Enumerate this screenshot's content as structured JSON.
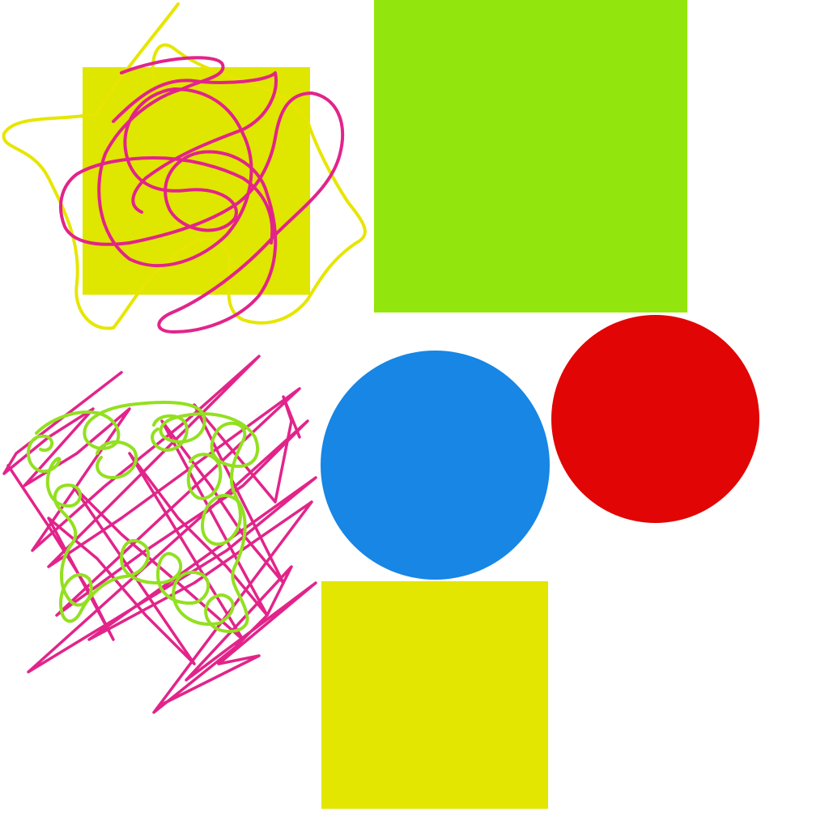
{
  "canvas": {
    "background": "#ffffff"
  },
  "shapes": [
    {
      "kind": "square",
      "name": "yellow-square-top",
      "color": "#dfe600"
    },
    {
      "kind": "square",
      "name": "green-square",
      "color": "#93e60d"
    },
    {
      "kind": "square",
      "name": "yellow-square-bottom",
      "color": "#e2e600"
    },
    {
      "kind": "circle",
      "name": "blue-circle",
      "color": "#1786e4"
    },
    {
      "kind": "circle",
      "name": "red-circle",
      "color": "#e10505"
    }
  ],
  "scribbles": [
    {
      "name": "yellow-loop-scribble",
      "color": "#e6e600"
    },
    {
      "name": "magenta-loop-scribble",
      "color": "#e2248a"
    },
    {
      "name": "magenta-zigzag-scribble",
      "color": "#e2248a"
    },
    {
      "name": "green-loop-scribble",
      "color": "#93e020"
    }
  ]
}
